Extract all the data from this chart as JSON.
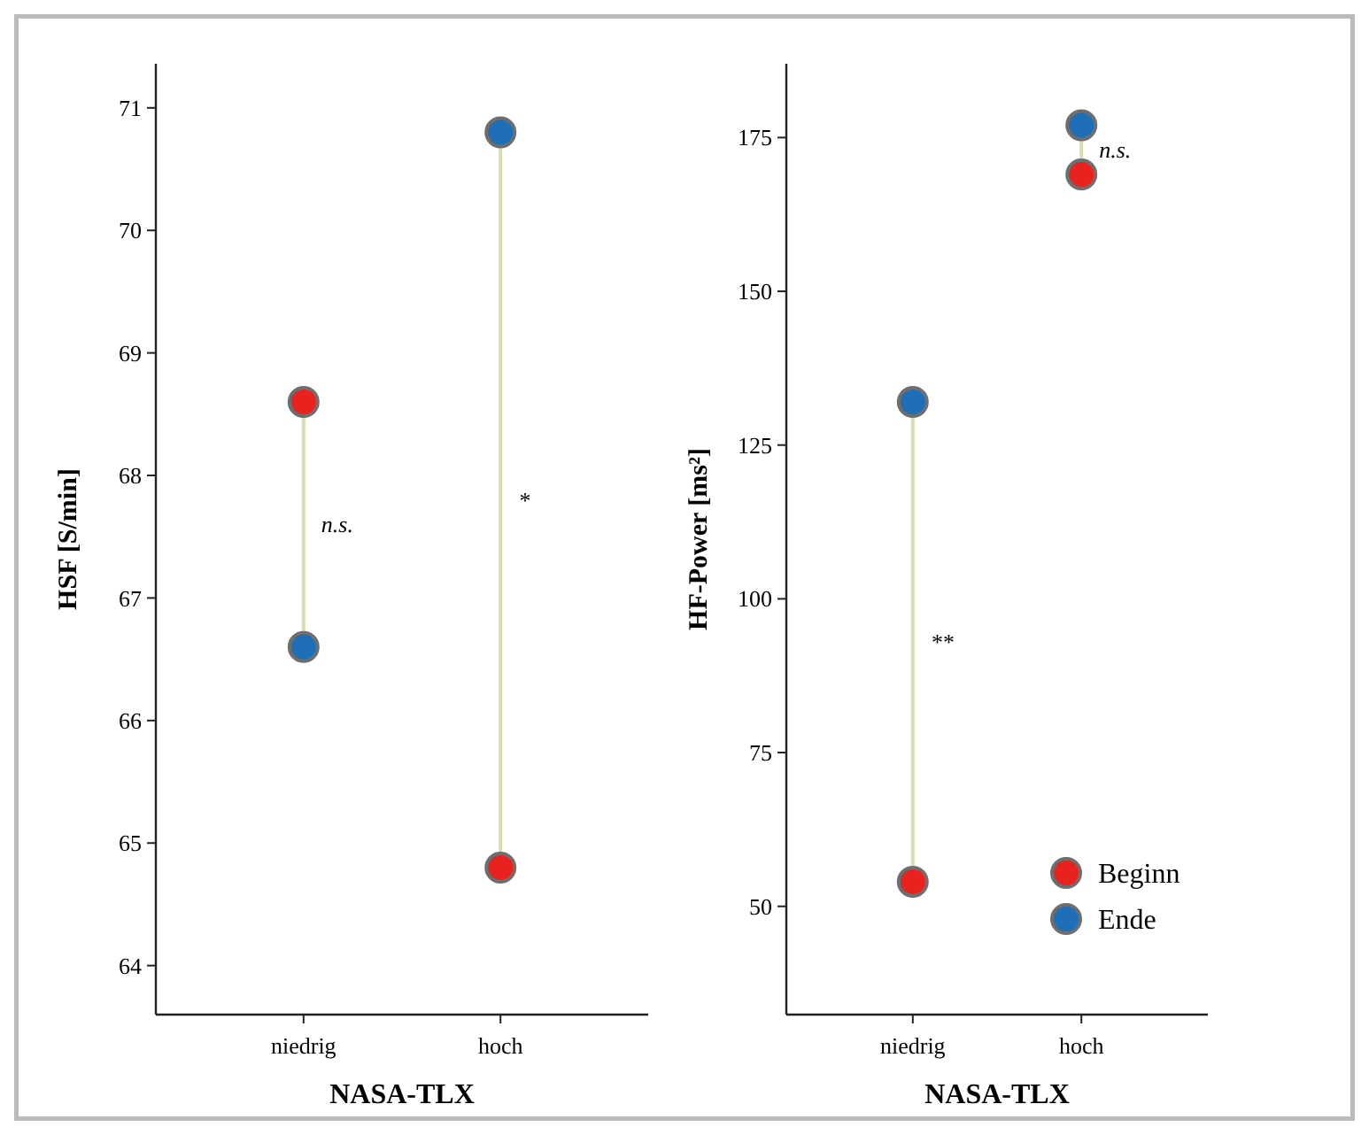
{
  "chart_data": [
    {
      "type": "scatter",
      "ylabel": "HSF [S/min]",
      "xlabel": "NASA-TLX",
      "categories": [
        "niedrig",
        "hoch"
      ],
      "ylim": [
        63.6,
        71.36
      ],
      "yticks": [
        64,
        65,
        66,
        67,
        68,
        69,
        70,
        71
      ],
      "grid": false,
      "legend": false,
      "marker": "circle",
      "series": [
        {
          "color": "#e8231f",
          "values": [
            68.6,
            64.8
          ]
        },
        {
          "color": "#1f6fb8",
          "values": [
            66.6,
            70.8
          ]
        }
      ],
      "annotations": [
        "n.s.",
        "*"
      ]
    },
    {
      "type": "scatter",
      "ylabel": "HF-Power [ms²]",
      "xlabel": "NASA-TLX",
      "categories": [
        "niedrig",
        "hoch"
      ],
      "ylim": [
        32.4,
        187
      ],
      "yticks": [
        50,
        75,
        100,
        125,
        150,
        175
      ],
      "grid": false,
      "legend": "bottom right",
      "marker": "circle",
      "series": [
        {
          "name": "Beginn",
          "color": "#e8231f",
          "values": [
            54,
            169
          ]
        },
        {
          "name": "Ende",
          "color": "#1f6fb8",
          "values": [
            132,
            177
          ]
        }
      ],
      "annotations": [
        "**",
        "n.s."
      ]
    }
  ]
}
